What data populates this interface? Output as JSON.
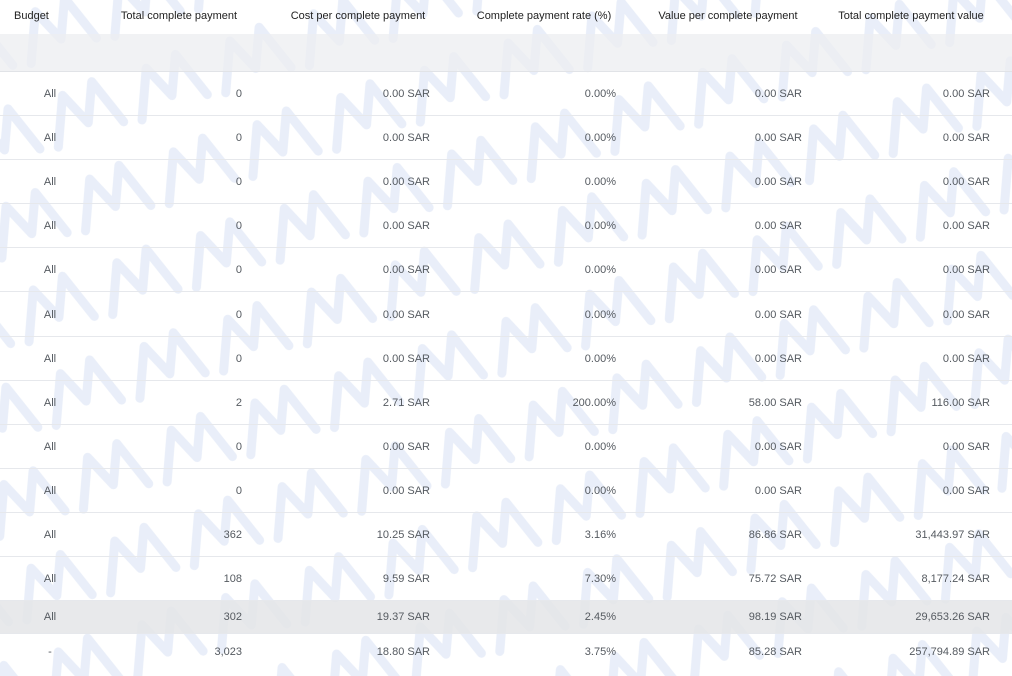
{
  "columns": [
    "Budget",
    "Total complete payment",
    "Cost per complete payment",
    "Complete payment rate (%)",
    "Value per complete payment",
    "Total complete payment value"
  ],
  "rows": [
    [
      "All",
      "0",
      "0.00 SAR",
      "0.00%",
      "0.00 SAR",
      "0.00 SAR"
    ],
    [
      "All",
      "0",
      "0.00 SAR",
      "0.00%",
      "0.00 SAR",
      "0.00 SAR"
    ],
    [
      "All",
      "0",
      "0.00 SAR",
      "0.00%",
      "0.00 SAR",
      "0.00 SAR"
    ],
    [
      "All",
      "0",
      "0.00 SAR",
      "0.00%",
      "0.00 SAR",
      "0.00 SAR"
    ],
    [
      "All",
      "0",
      "0.00 SAR",
      "0.00%",
      "0.00 SAR",
      "0.00 SAR"
    ],
    [
      "All",
      "0",
      "0.00 SAR",
      "0.00%",
      "0.00 SAR",
      "0.00 SAR"
    ],
    [
      "All",
      "0",
      "0.00 SAR",
      "0.00%",
      "0.00 SAR",
      "0.00 SAR"
    ],
    [
      "All",
      "2",
      "2.71 SAR",
      "200.00%",
      "58.00 SAR",
      "116.00 SAR"
    ],
    [
      "All",
      "0",
      "0.00 SAR",
      "0.00%",
      "0.00 SAR",
      "0.00 SAR"
    ],
    [
      "All",
      "0",
      "0.00 SAR",
      "0.00%",
      "0.00 SAR",
      "0.00 SAR"
    ],
    [
      "All",
      "362",
      "10.25 SAR",
      "3.16%",
      "86.86 SAR",
      "31,443.97 SAR"
    ],
    [
      "All",
      "108",
      "9.59 SAR",
      "7.30%",
      "75.72 SAR",
      "8,177.24 SAR"
    ],
    [
      "All",
      "302",
      "19.37 SAR",
      "2.45%",
      "98.19 SAR",
      "29,653.26 SAR"
    ]
  ],
  "total_row": [
    "-",
    "3,023",
    "18.80 SAR",
    "3.75%",
    "85.28 SAR",
    "257,794.89 SAR"
  ]
}
